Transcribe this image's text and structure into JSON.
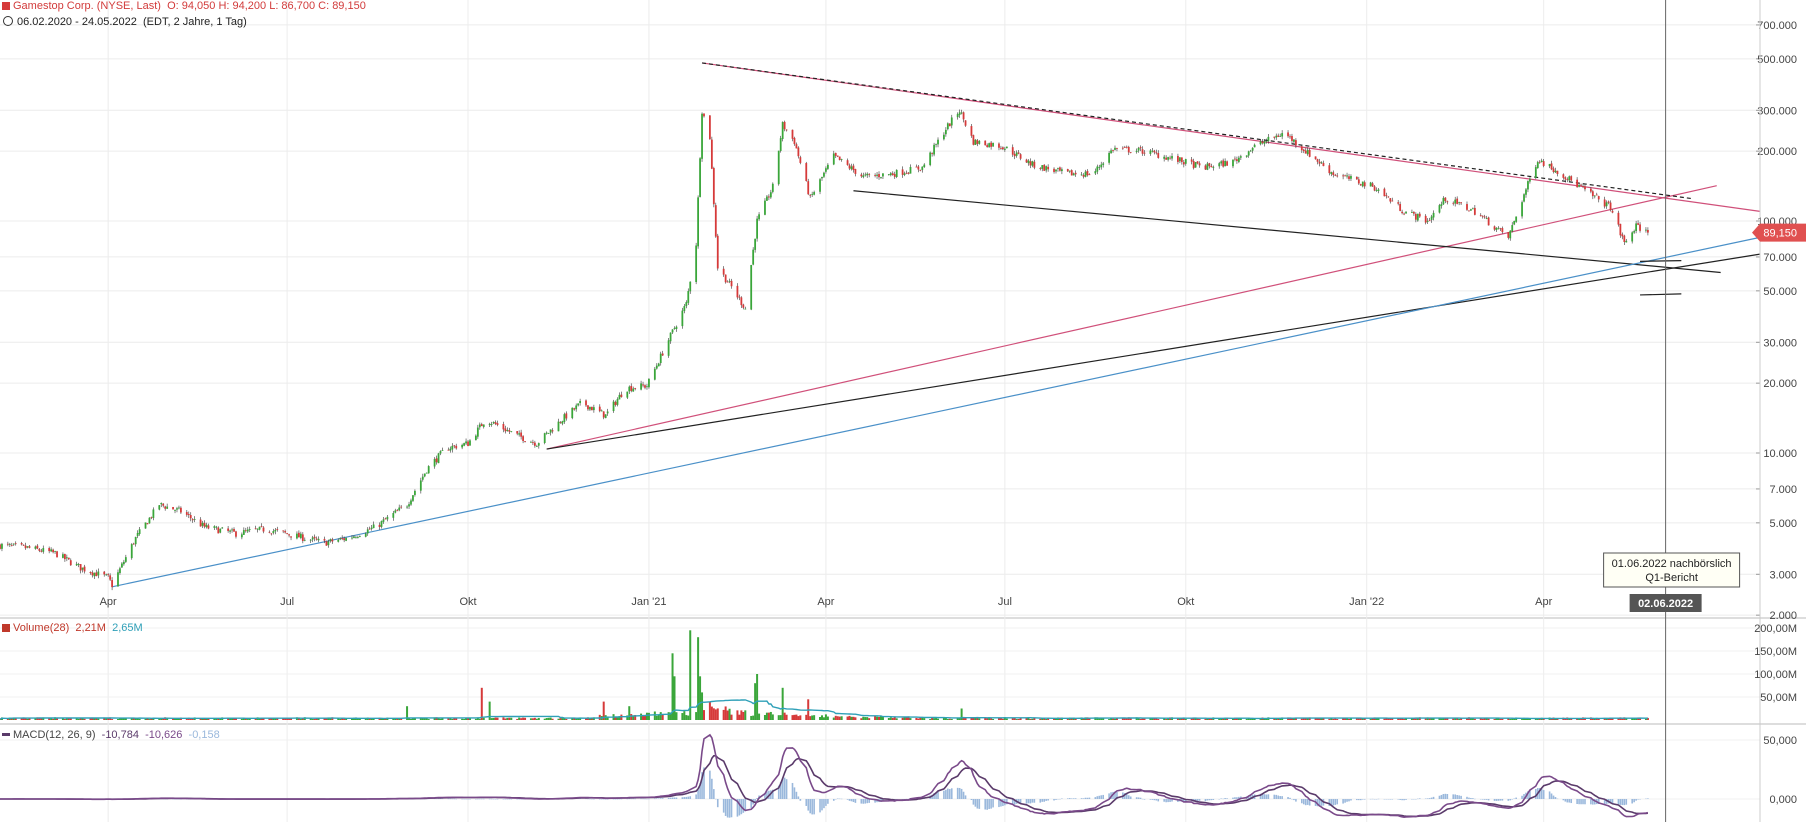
{
  "header": {
    "instrument": "Gamestop Corp. (NYSE, Last)",
    "ohlc": "O: 94,050  H: 94,200  L: 86,700  C: 89,150",
    "range": "06.02.2020 - 24.05.2022",
    "meta": "(EDT, 2 Jahre, 1 Tag)"
  },
  "colors": {
    "up": "#3aa63a",
    "down": "#d63a3a",
    "pink_line": "#d0507a",
    "blue_line": "#4a90c8",
    "black_line": "#222222",
    "volume_ma": "#2fa0b8",
    "macd_line": "#7a4a8a",
    "signal_line": "#5a3a6a",
    "hist": "#9ab8dc",
    "price_tag": "#e05050"
  },
  "chart_data": [
    {
      "type": "candlestick",
      "title": "Gamestop Corp. (NYSE, Last)",
      "scale": "log",
      "ylim": [
        2000,
        800000
      ],
      "y_ticks": [
        "2.000",
        "3.000",
        "5.000",
        "7.000",
        "10.000",
        "20.000",
        "30.000",
        "50.000",
        "70.000",
        "100.000",
        "200.000",
        "300.000",
        "500.000",
        "700.000"
      ],
      "x_ticks": [
        "Apr",
        "Jul",
        "Okt",
        "Jan '21",
        "Apr",
        "Jul",
        "Okt",
        "Jan '22",
        "Apr"
      ],
      "x_tick_dates": [
        "2020-04-01",
        "2020-07-01",
        "2020-10-01",
        "2021-01-01",
        "2021-04-01",
        "2021-07-01",
        "2021-10-01",
        "2022-01-01",
        "2022-04-01"
      ],
      "x_range": [
        "2020-02-06",
        "2022-07-20"
      ],
      "last_price": "89,150",
      "cursor_date": "02.06.2022",
      "annotation": {
        "date": "2022-06-02",
        "text_line1": "01.06.2022 nachbörslich",
        "text_line2": "Q1-Bericht"
      },
      "price_path": [
        [
          "2020-02-06",
          4000
        ],
        [
          "2020-02-20",
          3900
        ],
        [
          "2020-03-05",
          3700
        ],
        [
          "2020-03-18",
          3200
        ],
        [
          "2020-04-01",
          2900
        ],
        [
          "2020-04-03",
          2700
        ],
        [
          "2020-04-15",
          4300
        ],
        [
          "2020-04-27",
          6000
        ],
        [
          "2020-05-08",
          5600
        ],
        [
          "2020-05-20",
          4800
        ],
        [
          "2020-06-05",
          4500
        ],
        [
          "2020-06-20",
          4700
        ],
        [
          "2020-07-05",
          4400
        ],
        [
          "2020-07-20",
          4100
        ],
        [
          "2020-08-01",
          4300
        ],
        [
          "2020-08-15",
          4800
        ],
        [
          "2020-08-31",
          6000
        ],
        [
          "2020-09-10",
          8500
        ],
        [
          "2020-09-20",
          10500
        ],
        [
          "2020-10-01",
          11000
        ],
        [
          "2020-10-10",
          14000
        ],
        [
          "2020-10-25",
          12000
        ],
        [
          "2020-11-05",
          11000
        ],
        [
          "2020-11-18",
          14000
        ],
        [
          "2020-11-28",
          16500
        ],
        [
          "2020-12-10",
          14500
        ],
        [
          "2020-12-20",
          19000
        ],
        [
          "2020-12-31",
          19500
        ],
        [
          "2021-01-12",
          32000
        ],
        [
          "2021-01-20",
          44000
        ],
        [
          "2021-01-25",
          80000
        ],
        [
          "2021-01-28",
          300000
        ],
        [
          "2021-02-01",
          230000
        ],
        [
          "2021-02-05",
          63000
        ],
        [
          "2021-02-12",
          52000
        ],
        [
          "2021-02-19",
          42000
        ],
        [
          "2021-02-25",
          100000
        ],
        [
          "2021-03-05",
          140000
        ],
        [
          "2021-03-10",
          260000
        ],
        [
          "2021-03-16",
          220000
        ],
        [
          "2021-03-24",
          125000
        ],
        [
          "2021-04-05",
          190000
        ],
        [
          "2021-04-20",
          155000
        ],
        [
          "2021-05-05",
          160000
        ],
        [
          "2021-05-20",
          170000
        ],
        [
          "2021-06-01",
          250000
        ],
        [
          "2021-06-08",
          300000
        ],
        [
          "2021-06-15",
          220000
        ],
        [
          "2021-06-30",
          210000
        ],
        [
          "2021-07-15",
          175000
        ],
        [
          "2021-08-01",
          160000
        ],
        [
          "2021-08-15",
          160000
        ],
        [
          "2021-08-25",
          205000
        ],
        [
          "2021-09-10",
          200000
        ],
        [
          "2021-09-25",
          185000
        ],
        [
          "2021-10-10",
          170000
        ],
        [
          "2021-10-25",
          180000
        ],
        [
          "2021-11-05",
          210000
        ],
        [
          "2021-11-20",
          240000
        ],
        [
          "2021-12-01",
          200000
        ],
        [
          "2021-12-15",
          160000
        ],
        [
          "2022-01-05",
          140000
        ],
        [
          "2022-01-20",
          110000
        ],
        [
          "2022-02-01",
          100000
        ],
        [
          "2022-02-10",
          125000
        ],
        [
          "2022-02-25",
          110000
        ],
        [
          "2022-03-14",
          85000
        ],
        [
          "2022-03-22",
          130000
        ],
        [
          "2022-03-29",
          185000
        ],
        [
          "2022-04-10",
          160000
        ],
        [
          "2022-04-25",
          130000
        ],
        [
          "2022-05-05",
          115000
        ],
        [
          "2022-05-12",
          80000
        ],
        [
          "2022-05-18",
          95000
        ],
        [
          "2022-05-24",
          89150
        ]
      ],
      "trendlines": [
        {
          "color": "pink_line",
          "dash": false,
          "from": [
            "2021-01-28",
            480000
          ],
          "to": [
            "2022-07-20",
            110000
          ]
        },
        {
          "color": "pink_line",
          "dash": false,
          "from": [
            "2020-11-10",
            10400
          ],
          "to": [
            "2022-06-28",
            142000
          ]
        },
        {
          "color": "black_line",
          "dash": true,
          "from": [
            "2021-01-28",
            480000
          ],
          "to": [
            "2022-06-15",
            125000
          ]
        },
        {
          "color": "black_line",
          "dash": false,
          "from": [
            "2021-04-15",
            135000
          ],
          "to": [
            "2022-06-30",
            60000
          ]
        },
        {
          "color": "black_line",
          "dash": false,
          "from": [
            "2020-11-10",
            10400
          ],
          "to": [
            "2022-07-20",
            72000
          ]
        },
        {
          "color": "blue_line",
          "dash": false,
          "from": [
            "2020-04-03",
            2650
          ],
          "to": [
            "2022-07-20",
            85000
          ]
        },
        {
          "color": "black_line",
          "dash": false,
          "from": [
            "2022-05-20",
            67000
          ],
          "to": [
            "2022-06-10",
            67500
          ]
        },
        {
          "color": "black_line",
          "dash": false,
          "from": [
            "2022-05-20",
            48000
          ],
          "to": [
            "2022-06-10",
            48500
          ]
        }
      ]
    },
    {
      "type": "bar",
      "title": "Volume(28)",
      "values_label": [
        "2,21M",
        "2,65M"
      ],
      "y_ticks": [
        "50,00M",
        "100,00M",
        "150,00M",
        "200,00M"
      ],
      "ylim": [
        0,
        200
      ],
      "spikes": [
        [
          "2020-08-31",
          30
        ],
        [
          "2020-10-08",
          70
        ],
        [
          "2020-10-12",
          40
        ],
        [
          "2020-12-09",
          40
        ],
        [
          "2020-12-22",
          30
        ],
        [
          "2021-01-13",
          145
        ],
        [
          "2021-01-14",
          95
        ],
        [
          "2021-01-22",
          195
        ],
        [
          "2021-01-26",
          180
        ],
        [
          "2021-01-27",
          95
        ],
        [
          "2021-01-28",
          60
        ],
        [
          "2021-02-01",
          40
        ],
        [
          "2021-02-24",
          80
        ],
        [
          "2021-02-25",
          100
        ],
        [
          "2021-03-10",
          70
        ],
        [
          "2021-03-23",
          45
        ],
        [
          "2021-06-09",
          25
        ]
      ]
    },
    {
      "type": "line",
      "title": "MACD(12, 26, 9)",
      "values_label": [
        "-10,784",
        "-10,626",
        "-0,158"
      ],
      "y_ticks": [
        "0,000",
        "50,000"
      ],
      "peaks": [
        [
          "2021-02-03",
          65000
        ],
        [
          "2021-03-19",
          52000
        ],
        [
          "2021-06-15",
          35000
        ],
        [
          "2021-09-01",
          10000
        ],
        [
          "2021-11-20",
          8000
        ],
        [
          "2022-04-01",
          15000
        ],
        [
          "2022-05-20",
          -12000
        ]
      ]
    }
  ]
}
